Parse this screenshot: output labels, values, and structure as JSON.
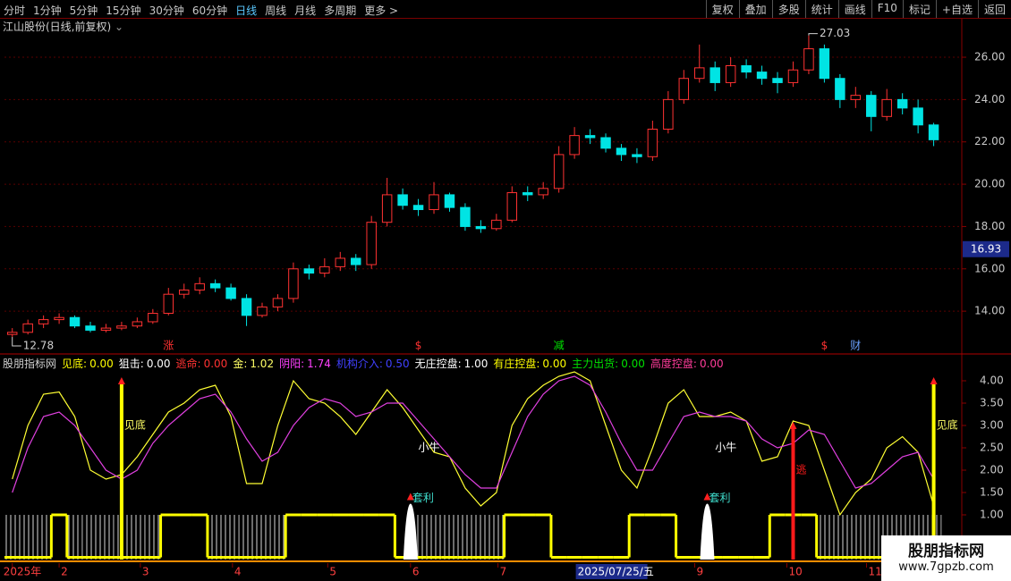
{
  "toolbar": {
    "left": [
      "分时",
      "1分钟",
      "5分钟",
      "15分钟",
      "30分钟",
      "60分钟",
      "日线",
      "周线",
      "月线",
      "多周期",
      "更多 >"
    ],
    "active": 6,
    "right": [
      "复权",
      "叠加",
      "多股",
      "统计",
      "画线",
      "F10",
      "标记",
      "+自选",
      "返回"
    ]
  },
  "chart_data": [
    {
      "type": "candlestick",
      "title": "江山股份(日线,前复权)",
      "up_color": "#ff3232",
      "down_color": "#00e4e4",
      "open": [
        12.9,
        13.0,
        13.4,
        13.6,
        13.7,
        13.3,
        13.1,
        13.2,
        13.3,
        13.5,
        13.9,
        14.8,
        15.0,
        15.3,
        15.1,
        14.6,
        13.8,
        14.2,
        14.6,
        16.0,
        15.8,
        16.1,
        16.5,
        16.2,
        18.2,
        19.5,
        19.0,
        18.8,
        19.5,
        18.9,
        18.0,
        17.9,
        18.3,
        19.6,
        19.5,
        19.8,
        21.4,
        22.3,
        22.2,
        21.7,
        21.4,
        21.3,
        22.6,
        24.0,
        25.0,
        25.5,
        24.8,
        25.6,
        25.3,
        25.0,
        24.8,
        25.4,
        26.4,
        25.0,
        24.0,
        24.2,
        23.2,
        24.0,
        23.6,
        22.8
      ],
      "high": [
        13.2,
        13.6,
        13.8,
        13.9,
        13.8,
        13.5,
        13.4,
        13.5,
        13.7,
        14.1,
        15.1,
        15.3,
        15.6,
        15.5,
        15.3,
        14.8,
        14.4,
        14.8,
        16.3,
        16.2,
        16.5,
        16.8,
        16.7,
        18.5,
        20.3,
        19.8,
        19.3,
        20.1,
        19.6,
        19.1,
        18.3,
        18.6,
        19.9,
        19.9,
        20.1,
        21.8,
        22.7,
        22.6,
        22.4,
        21.9,
        21.7,
        23.0,
        24.4,
        25.4,
        26.6,
        25.8,
        26.0,
        25.9,
        25.6,
        25.3,
        25.8,
        27.03,
        26.6,
        25.2,
        24.6,
        24.4,
        24.5,
        24.3,
        24.0,
        22.9
      ],
      "low": [
        12.78,
        12.9,
        13.2,
        13.4,
        13.2,
        13.0,
        13.0,
        13.1,
        13.2,
        13.4,
        13.8,
        14.6,
        14.8,
        14.9,
        14.5,
        13.3,
        13.7,
        14.0,
        14.4,
        15.5,
        15.6,
        15.9,
        15.9,
        16.0,
        18.0,
        18.8,
        18.5,
        18.6,
        18.7,
        17.8,
        17.7,
        17.8,
        18.2,
        19.2,
        19.3,
        19.6,
        21.2,
        21.9,
        21.5,
        21.1,
        21.0,
        21.1,
        22.4,
        23.8,
        24.8,
        24.4,
        24.6,
        25.0,
        24.7,
        24.3,
        24.6,
        25.2,
        24.8,
        23.6,
        23.6,
        22.5,
        23.0,
        23.3,
        22.4,
        21.8
      ],
      "close": [
        13.0,
        13.4,
        13.6,
        13.7,
        13.3,
        13.1,
        13.2,
        13.3,
        13.5,
        13.9,
        14.8,
        15.0,
        15.3,
        15.1,
        14.6,
        13.8,
        14.2,
        14.6,
        16.0,
        15.8,
        16.1,
        16.5,
        16.2,
        18.2,
        19.5,
        19.0,
        18.8,
        19.5,
        18.9,
        18.0,
        17.9,
        18.3,
        19.6,
        19.5,
        19.8,
        21.4,
        22.3,
        22.2,
        21.7,
        21.4,
        21.3,
        22.6,
        24.0,
        25.0,
        25.5,
        24.8,
        25.6,
        25.3,
        25.0,
        24.8,
        25.4,
        26.4,
        25.0,
        24.0,
        24.2,
        23.2,
        24.0,
        23.6,
        22.8,
        22.1
      ],
      "xlim": [
        -0.5,
        60.8
      ],
      "ylim": [
        12.02,
        27.86
      ],
      "yticks": [
        {
          "value": 14,
          "label": "14.00"
        },
        {
          "value": 16,
          "label": "16.00"
        },
        {
          "value": 18,
          "label": "18.00"
        },
        {
          "value": 20,
          "label": "20.00"
        },
        {
          "value": 22,
          "label": "22.00"
        },
        {
          "value": 24,
          "label": "24.00"
        },
        {
          "value": 26,
          "label": "26.00"
        }
      ],
      "grid": true,
      "annotations": [
        {
          "index": 51,
          "value": 27.03,
          "label": "27.03"
        },
        {
          "index": 0,
          "value": 12.78,
          "label": "12.78"
        }
      ],
      "price_tag": {
        "value": 16.93,
        "label": "16.93"
      },
      "events": [
        {
          "index": 10,
          "label": "涨",
          "color": "#ff3232"
        },
        {
          "index": 26,
          "label": "$",
          "color": "#ff3232"
        },
        {
          "index": 35,
          "label": "减",
          "color": "#00e000"
        },
        {
          "index": 52,
          "label": "$",
          "color": "#ff3232"
        },
        {
          "index": 54,
          "label": "财",
          "color": "#6aa0ff"
        }
      ]
    },
    {
      "type": "line",
      "title": "股朋指标网",
      "readout": [
        {
          "label": "见底:",
          "value": "0.00",
          "color": "#ffff00"
        },
        {
          "label": "狙击:",
          "value": "0.00",
          "color": "#ffffff"
        },
        {
          "label": "逃命:",
          "value": "0.00",
          "color": "#ff3232"
        },
        {
          "label": "金:",
          "value": "1.02",
          "color": "#ffff66"
        },
        {
          "label": "阴阳:",
          "value": "1.74",
          "color": "#ff40ff"
        },
        {
          "label": "机构介入:",
          "value": "0.50",
          "color": "#4040ff"
        },
        {
          "label": "无庄控盘:",
          "value": "1.00",
          "color": "#ffffff"
        },
        {
          "label": "有庄控盘:",
          "value": "0.00",
          "color": "#ffff00"
        },
        {
          "label": "主力出货:",
          "value": "0.00",
          "color": "#00e000"
        },
        {
          "label": "高度控盘:",
          "value": "0.00",
          "color": "#ff3c9a"
        }
      ],
      "xlim": [
        -0.5,
        60.8
      ],
      "ylim": [
        -0.08,
        4.22
      ],
      "yticks": [
        {
          "value": 1,
          "label": "1.00"
        },
        {
          "value": 1.5,
          "label": "1.50"
        },
        {
          "value": 2,
          "label": "2.00"
        },
        {
          "value": 2.5,
          "label": "2.50"
        },
        {
          "value": 3,
          "label": "3.00"
        },
        {
          "value": 3.5,
          "label": "3.50"
        },
        {
          "value": 4,
          "label": "4.00"
        }
      ],
      "xticks": [
        {
          "value": 0,
          "label": "2025年"
        },
        {
          "value": 3,
          "label": "2"
        },
        {
          "value": 8.2,
          "label": "3"
        },
        {
          "value": 14.1,
          "label": "4"
        },
        {
          "value": 20.2,
          "label": "5"
        },
        {
          "value": 25.5,
          "label": "6"
        },
        {
          "value": 31.1,
          "label": "7"
        },
        {
          "value": 43.7,
          "label": "9"
        },
        {
          "value": 49.6,
          "label": "10"
        },
        {
          "value": 54.7,
          "label": "11"
        }
      ],
      "cursor_date": {
        "value": 36.2,
        "label": "2025/07/25/五"
      },
      "series": [
        {
          "color": "#ffff33",
          "values": [
            1.8,
            3.0,
            3.7,
            3.75,
            3.2,
            2.0,
            1.8,
            1.9,
            2.3,
            2.8,
            3.3,
            3.5,
            3.8,
            3.9,
            3.2,
            1.7,
            1.7,
            3.0,
            4.0,
            3.6,
            3.5,
            3.2,
            2.8,
            3.3,
            3.8,
            3.4,
            2.9,
            2.4,
            2.3,
            1.6,
            1.2,
            1.5,
            3.0,
            3.6,
            3.9,
            4.1,
            4.2,
            4.0,
            3.0,
            2.0,
            1.6,
            2.5,
            3.5,
            3.8,
            3.2,
            3.2,
            3.3,
            3.1,
            2.2,
            2.3,
            3.1,
            3.0,
            2.0,
            1.0,
            1.5,
            1.8,
            2.5,
            2.75,
            2.4,
            1.2
          ]
        },
        {
          "color": "#e040e0",
          "values": [
            1.5,
            2.5,
            3.2,
            3.3,
            3.0,
            2.5,
            2.0,
            1.8,
            2.0,
            2.6,
            3.0,
            3.3,
            3.6,
            3.7,
            3.3,
            2.7,
            2.2,
            2.4,
            3.0,
            3.4,
            3.6,
            3.5,
            3.2,
            3.3,
            3.5,
            3.5,
            3.1,
            2.7,
            2.3,
            1.9,
            1.6,
            1.6,
            2.4,
            3.2,
            3.7,
            4.0,
            4.1,
            3.9,
            3.3,
            2.6,
            2.0,
            2.0,
            2.6,
            3.2,
            3.3,
            3.2,
            3.2,
            3.1,
            2.7,
            2.5,
            2.6,
            2.9,
            2.8,
            2.2,
            1.6,
            1.7,
            2.0,
            2.3,
            2.4,
            1.8
          ]
        }
      ],
      "hatch": [
        1,
        1,
        1,
        0,
        1,
        1,
        1,
        1,
        1,
        1,
        0,
        0,
        0,
        1,
        1,
        1,
        1,
        1,
        0,
        0,
        0,
        0,
        0,
        0,
        0,
        0,
        1,
        1,
        1,
        1,
        1,
        1,
        0,
        0,
        0,
        0,
        0,
        0,
        0,
        0,
        0,
        0,
        0,
        0,
        0,
        0,
        0,
        0,
        0,
        0,
        0,
        0,
        1,
        1,
        1,
        1,
        1,
        1,
        1,
        1
      ],
      "level": [
        0.05,
        0.05,
        0.05,
        1,
        0.05,
        0.05,
        0.05,
        0.05,
        0.05,
        0.05,
        1,
        1,
        1,
        0.05,
        0.05,
        0.05,
        0.05,
        0.05,
        1,
        1,
        1,
        1,
        1,
        1,
        1,
        0.05,
        0.05,
        0.05,
        0.05,
        0.05,
        0.05,
        0.05,
        1,
        1,
        1,
        0.05,
        0.05,
        0.05,
        0.05,
        0.05,
        1,
        1,
        1,
        0.05,
        0.05,
        0.05,
        0.05,
        0.05,
        0.05,
        1,
        1,
        1,
        0.05,
        0.05,
        0.05,
        0.05,
        0.05,
        0.05,
        0.05,
        0.05
      ],
      "level_color": "#ffff00",
      "spikes": [
        {
          "index": 7,
          "value": 4.0,
          "color": "#ffff00",
          "label": "见底"
        },
        {
          "index": 59,
          "value": 4.0,
          "color": "#ffff00",
          "label": "见底"
        },
        {
          "index": 50,
          "value": 3.0,
          "color": "#ff1a1a",
          "label": "逃"
        },
        {
          "index": 25.5,
          "value": 1.25,
          "color": "#ffffff",
          "label": "套利"
        },
        {
          "index": 44.5,
          "value": 1.25,
          "color": "#ffffff",
          "label": "套利"
        }
      ],
      "notes": [
        {
          "index": 26,
          "value": 2.5,
          "label": "小牛"
        },
        {
          "index": 45,
          "value": 2.5,
          "label": "小牛"
        }
      ]
    }
  ],
  "watermark": {
    "title": "股朋指标网",
    "url": "www.7gpzb.com"
  }
}
